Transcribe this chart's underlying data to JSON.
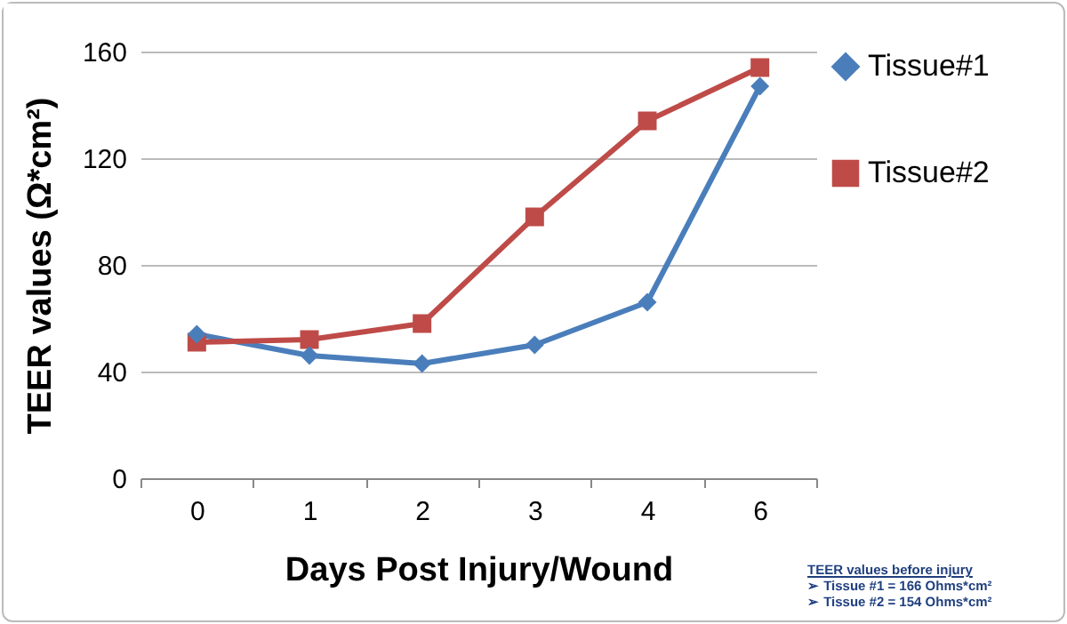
{
  "chart_data": {
    "type": "line",
    "xlabel": "Days Post Injury/Wound",
    "ylabel": "TEER values  (Ω*cm²)",
    "categories": [
      "0",
      "1",
      "2",
      "3",
      "4",
      "6"
    ],
    "series": [
      {
        "name": "Tissue#1",
        "color": "#4a7ebb",
        "marker": "diamond",
        "values": [
          54,
          46,
          43,
          50,
          66,
          147
        ]
      },
      {
        "name": "Tissue#2",
        "color": "#be4b48",
        "marker": "square",
        "values": [
          51,
          52,
          58,
          98,
          134,
          154
        ]
      }
    ],
    "ylim": [
      0,
      160
    ],
    "yticks": [
      0,
      40,
      80,
      120,
      160
    ],
    "grid": "y",
    "legend": "right",
    "line_style": "solid",
    "annotations": [
      "TEER values before injury",
      "➢ Tissue #1 = 166 Ohms*cm²",
      "➢ Tissue #2 = 154 Ohms*cm²"
    ]
  }
}
